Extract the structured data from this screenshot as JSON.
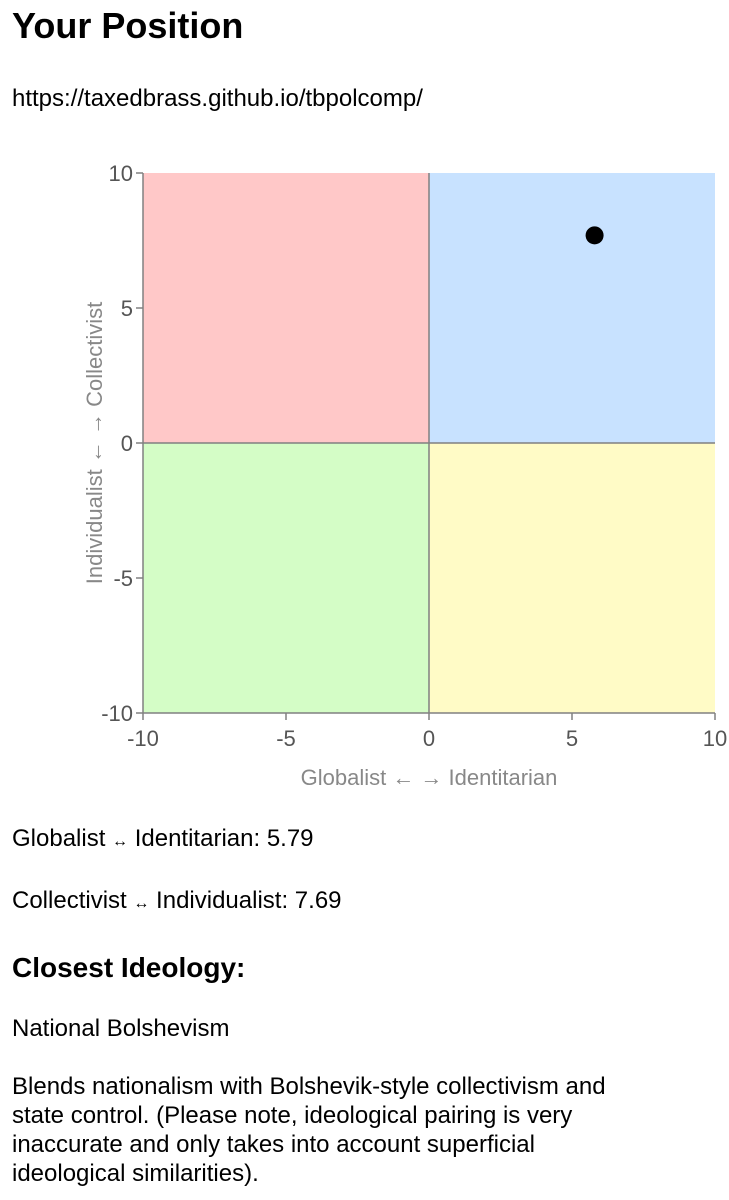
{
  "page": {
    "title": "Your Position",
    "url": "https://taxedbrass.github.io/tbpolcomp/"
  },
  "chart_data": {
    "type": "scatter",
    "xlabel": "Globalist ← → Identitarian",
    "ylabel": "Individualist ← → Collectivist",
    "xlim": [
      -10,
      10
    ],
    "ylim": [
      -10,
      10
    ],
    "x_ticks": [
      "-10",
      "-5",
      "0",
      "5",
      "10"
    ],
    "y_ticks": [
      "10",
      "5",
      "0",
      "-5",
      "-10"
    ],
    "quadrant_colors": {
      "top_left": "#ffc8c8",
      "top_right": "#c8e2ff",
      "bottom_left": "#d4fdc6",
      "bottom_right": "#fffbc6"
    },
    "point_color": "#000000",
    "axis_color": "#808080",
    "points": [
      {
        "x": 5.79,
        "y": 7.69
      }
    ],
    "grid": false,
    "legend": "none"
  },
  "scores": {
    "x_label": "Globalist",
    "x_arrow": "↔",
    "x_label_end": "Identitarian",
    "x_value": "5.79",
    "y_label": "Collectivist",
    "y_arrow": "↔",
    "y_label_end": "Individualist",
    "y_value": "7.69"
  },
  "ideology": {
    "heading": "Closest Ideology:",
    "name": "National Bolshevism",
    "description": "Blends nationalism with Bolshevik-style collectivism and state control. (Please note, ideological pairing is very inaccurate and only takes into account superficial ideological similarities)."
  }
}
